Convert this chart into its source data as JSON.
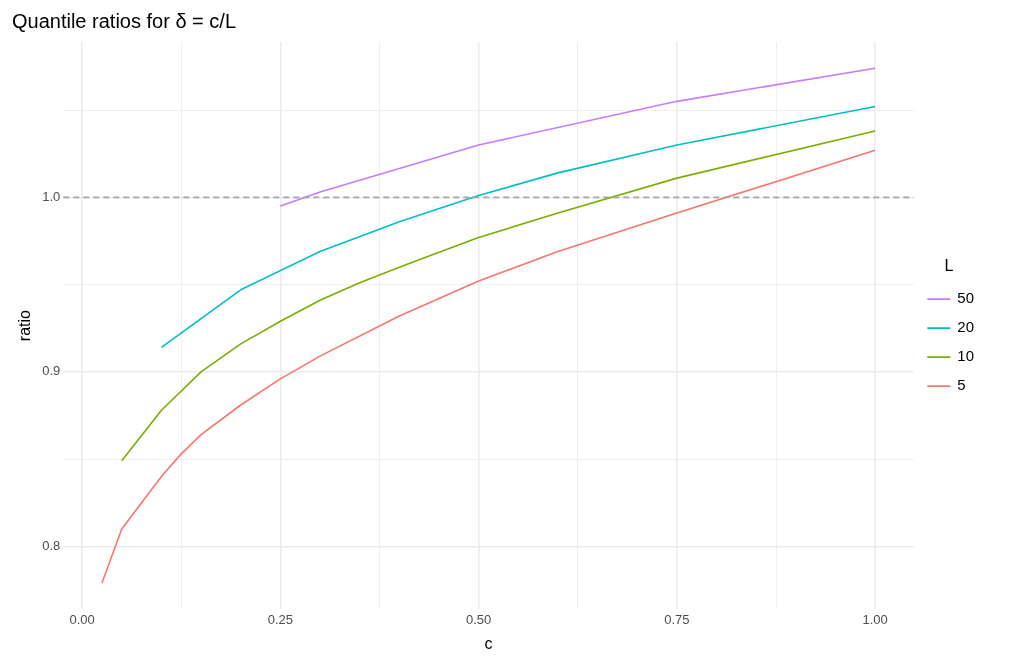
{
  "chart_data": {
    "type": "line",
    "title": "Quantile ratios for δ = c/L",
    "xlabel": "c",
    "ylabel": "ratio",
    "legend_title": "L",
    "legend": "right",
    "grid": true,
    "marker": "none",
    "line_style": "solid",
    "xlim": [
      -0.02375,
      1.04875
    ],
    "xticks": [
      {
        "value": 0,
        "label": "0.00"
      },
      {
        "value": 0.125,
        "label": null
      },
      {
        "value": 0.25,
        "label": "0.25"
      },
      {
        "value": 0.375,
        "label": null
      },
      {
        "value": 0.5,
        "label": "0.50"
      },
      {
        "value": 0.625,
        "label": null
      },
      {
        "value": 0.75,
        "label": "0.75"
      },
      {
        "value": 0.875,
        "label": null
      },
      {
        "value": 1,
        "label": "1.00"
      }
    ],
    "ylim": [
      0.764,
      1.089
    ],
    "yticks": [
      {
        "value": 0.8,
        "label": "0.8"
      },
      {
        "value": 0.85,
        "label": null
      },
      {
        "value": 0.9,
        "label": "0.9"
      },
      {
        "value": 0.95,
        "label": null
      },
      {
        "value": 1,
        "label": "1.0"
      },
      {
        "value": 1.05,
        "label": null
      }
    ],
    "ref_lines": [
      {
        "axis": "y",
        "value": 1,
        "color": "#a6a6a6",
        "line_style": "dashed"
      }
    ],
    "series": [
      {
        "name": "50",
        "color": "#c77cff",
        "x": [
          0.25,
          0.3,
          0.5,
          0.75,
          1.0
        ],
        "values": [
          0.995,
          1.003,
          1.03,
          1.055,
          1.074
        ]
      },
      {
        "name": "20",
        "color": "#00bfc4",
        "x": [
          0.1,
          0.2,
          0.3,
          0.4,
          0.5,
          0.6,
          0.75,
          1.0
        ],
        "values": [
          0.914,
          0.947,
          0.969,
          0.986,
          1.001,
          1.014,
          1.03,
          1.052
        ]
      },
      {
        "name": "10",
        "color": "#7cae00",
        "x": [
          0.05,
          0.1,
          0.15,
          0.2,
          0.25,
          0.3,
          0.35,
          0.4,
          0.5,
          0.6,
          0.75,
          1.0
        ],
        "values": [
          0.849,
          0.878,
          0.9,
          0.916,
          0.929,
          0.941,
          0.951,
          0.96,
          0.977,
          0.991,
          1.011,
          1.038
        ]
      },
      {
        "name": "5",
        "color": "#f8766d",
        "x": [
          0.025,
          0.05,
          0.075,
          0.1,
          0.125,
          0.15,
          0.2,
          0.25,
          0.3,
          0.4,
          0.5,
          0.6,
          0.75,
          1.0
        ],
        "values": [
          0.779,
          0.81,
          0.825,
          0.84,
          0.853,
          0.864,
          0.881,
          0.896,
          0.909,
          0.932,
          0.952,
          0.969,
          0.991,
          1.027
        ]
      }
    ]
  }
}
